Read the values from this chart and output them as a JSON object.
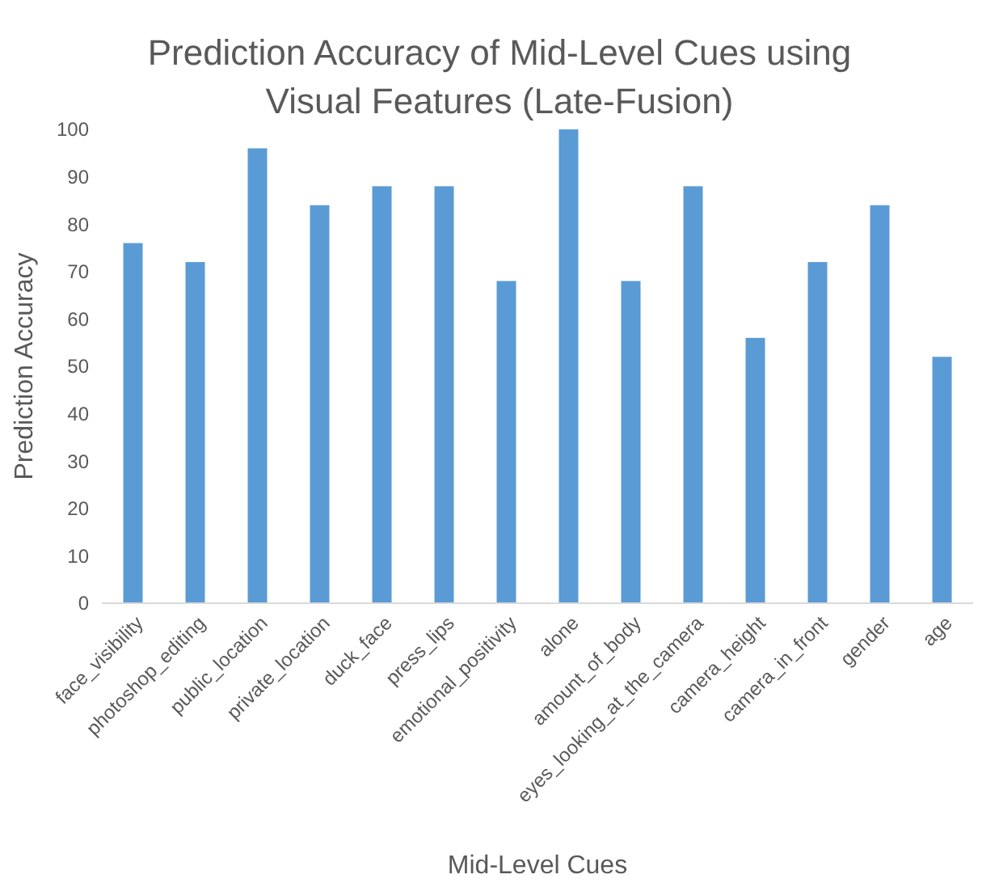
{
  "chart_data": {
    "type": "bar",
    "title": "Prediction Accuracy of Mid-Level Cues using Visual Features (Late-Fusion)",
    "xlabel": "Mid-Level Cues",
    "ylabel": "Prediction Accuracy",
    "categories": [
      "face_visibility",
      "photoshop_editing",
      "public_location",
      "private_location",
      "duck_face",
      "press_lips",
      "emotional_positivity",
      "alone",
      "amount_of_body",
      "eyes_looking_at_the_camera",
      "camera_height",
      "camera_in_front",
      "gender",
      "age"
    ],
    "values": [
      76,
      72,
      96,
      84,
      88,
      88,
      68,
      100,
      68,
      88,
      56,
      72,
      84,
      52
    ],
    "color": "#5b9bd5",
    "ylim": [
      0,
      100
    ],
    "yticks": [
      0,
      10,
      20,
      30,
      40,
      50,
      60,
      70,
      80,
      90,
      100
    ],
    "grid": false
  }
}
